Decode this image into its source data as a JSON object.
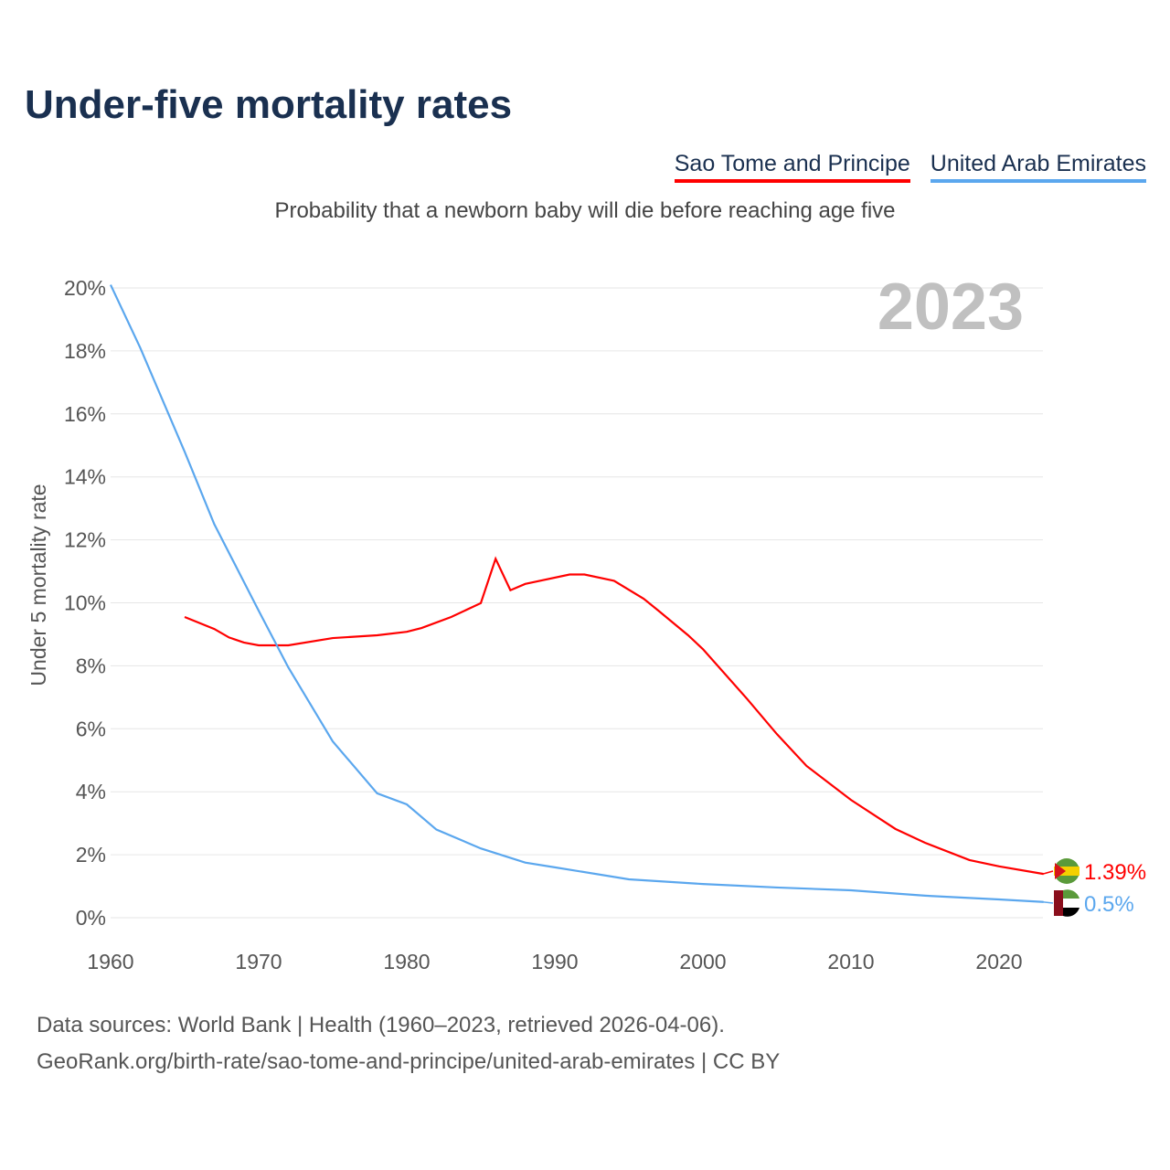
{
  "chart_data": {
    "type": "line",
    "title": "Under-five mortality rates",
    "subtitle": "Probability that a newborn baby will die before reaching age five",
    "ylabel": "Under 5 mortality rate",
    "xlabel": "",
    "year_label": "2023",
    "xlim": [
      1960,
      2023
    ],
    "ylim": [
      0,
      20
    ],
    "xticks": [
      "1960",
      "1970",
      "1980",
      "1990",
      "2000",
      "2010",
      "2020"
    ],
    "yticks": [
      "0%",
      "2%",
      "4%",
      "6%",
      "8%",
      "10%",
      "12%",
      "14%",
      "16%",
      "18%",
      "20%"
    ],
    "series": [
      {
        "name": "Sao Tome and Principe",
        "color": "#ff0000",
        "end_label": "1.39%",
        "x": [
          1965,
          1967,
          1968,
          1969,
          1970,
          1972,
          1975,
          1978,
          1980,
          1981,
          1983,
          1985,
          1986,
          1987,
          1988,
          1991,
          1992,
          1994,
          1996,
          1997,
          1999,
          2000,
          2003,
          2005,
          2007,
          2010,
          2013,
          2015,
          2018,
          2020,
          2023
        ],
        "values": [
          9.55,
          9.17,
          8.9,
          8.74,
          8.65,
          8.65,
          8.88,
          8.97,
          9.08,
          9.2,
          9.55,
          9.99,
          11.4,
          10.4,
          10.6,
          10.9,
          10.9,
          10.7,
          10.13,
          9.75,
          8.97,
          8.53,
          6.94,
          5.83,
          4.82,
          3.74,
          2.82,
          2.38,
          1.83,
          1.63,
          1.39
        ]
      },
      {
        "name": "United Arab Emirates",
        "color": "#5ba7ee",
        "end_label": "0.5%",
        "x": [
          1960,
          1962,
          1965,
          1967,
          1970,
          1972,
          1975,
          1978,
          1980,
          1982,
          1985,
          1988,
          1990,
          1995,
          2000,
          2005,
          2010,
          2015,
          2020,
          2023
        ],
        "values": [
          20.1,
          18.1,
          14.8,
          12.5,
          9.75,
          7.95,
          5.6,
          3.95,
          3.6,
          2.8,
          2.2,
          1.75,
          1.6,
          1.22,
          1.07,
          0.96,
          0.87,
          0.7,
          0.58,
          0.5
        ]
      }
    ]
  },
  "footer": {
    "line1": "Data sources: World Bank | Health (1960–2023, retrieved 2026-04-06).",
    "line2": "GeoRank.org/birth-rate/sao-tome-and-principe/united-arab-emirates | CC BY"
  }
}
